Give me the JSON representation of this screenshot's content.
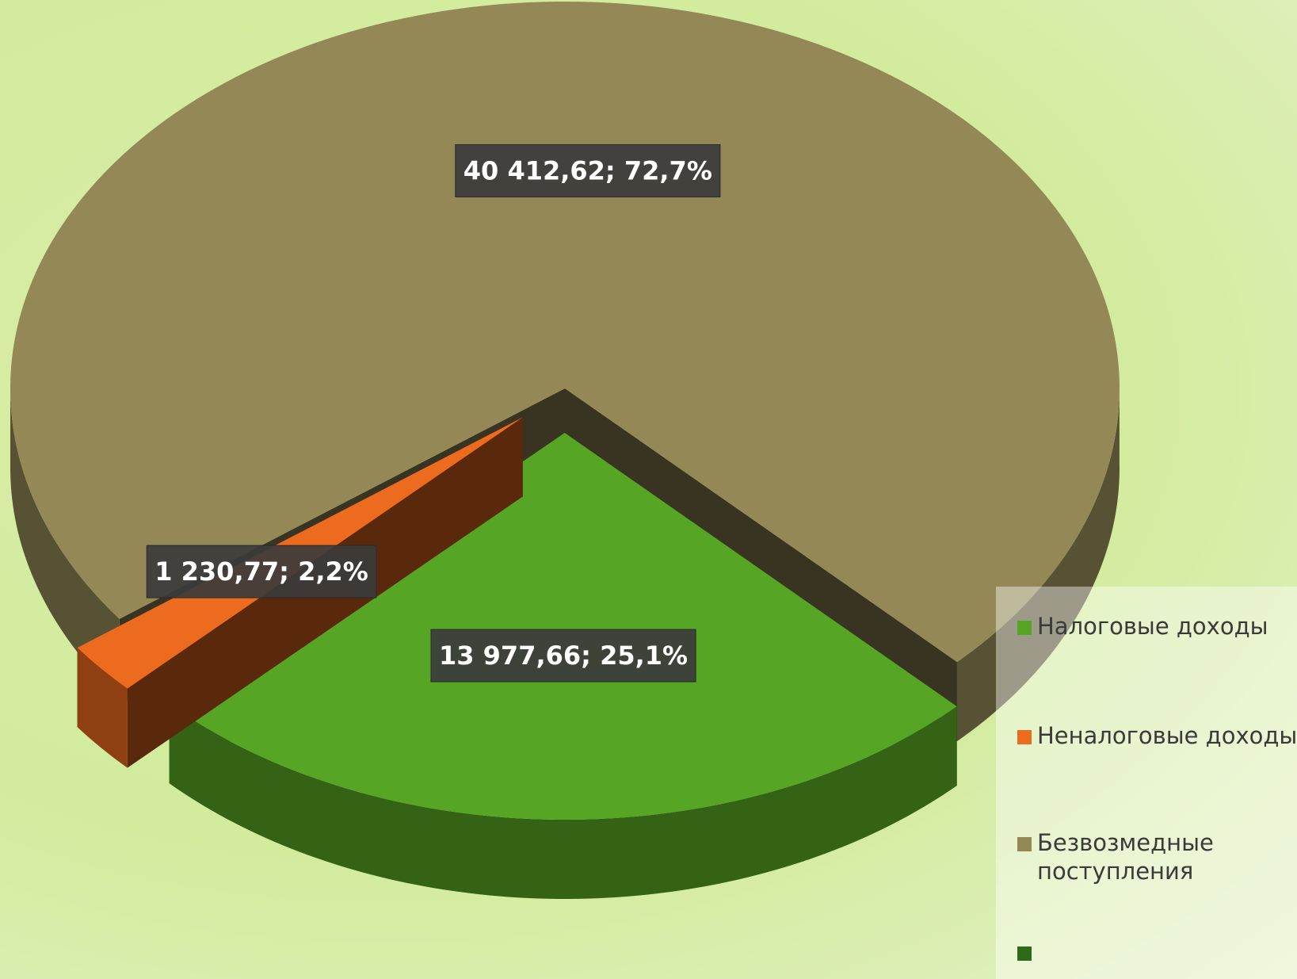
{
  "chart_data": {
    "type": "pie3d",
    "categories": [
      "Налоговые доходы",
      "Неналоговые доходы",
      "Безвозмедные поступления",
      null
    ],
    "values": [
      13977.66,
      1230.77,
      40412.62,
      null
    ],
    "value_labels": [
      "13 977,66; 25,1%",
      "1 230,77; 2,2%",
      "40 412,62; 72,7%",
      null
    ],
    "colors": [
      "#56a524",
      "#ed6b1f",
      "#938856",
      "#2f6a1a"
    ],
    "exploded": [
      true,
      true,
      false,
      false
    ],
    "legend": "right"
  }
}
